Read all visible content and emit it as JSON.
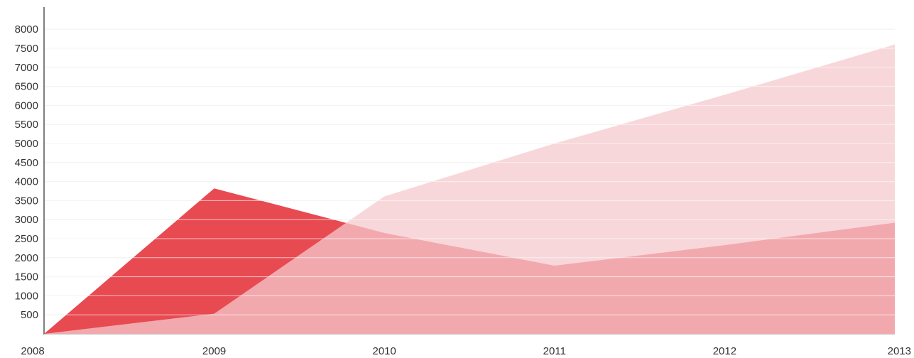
{
  "chart_data": {
    "type": "area",
    "title": "",
    "xlabel": "",
    "ylabel": "",
    "x": [
      "2008",
      "2009",
      "2010",
      "2011",
      "2012",
      "2013"
    ],
    "ylim": [
      0,
      8000
    ],
    "y_ticks": [
      500,
      1000,
      1500,
      2000,
      2500,
      3000,
      3500,
      4000,
      4500,
      5000,
      5500,
      6000,
      6500,
      7000,
      7500,
      8000
    ],
    "grid": true,
    "legend": "none",
    "series": [
      {
        "values": [
          0,
          3820,
          2650,
          1790,
          2330,
          2920
        ],
        "color": "#e84a52"
      },
      {
        "values": [
          0,
          530,
          3610,
          5000,
          6280,
          7600
        ],
        "color": "#f6c9cd"
      }
    ]
  },
  "colors": {
    "axis": "#555555",
    "grid": "#e3e3e3",
    "overlay_grid": "rgba(255,255,255,0.65)"
  }
}
